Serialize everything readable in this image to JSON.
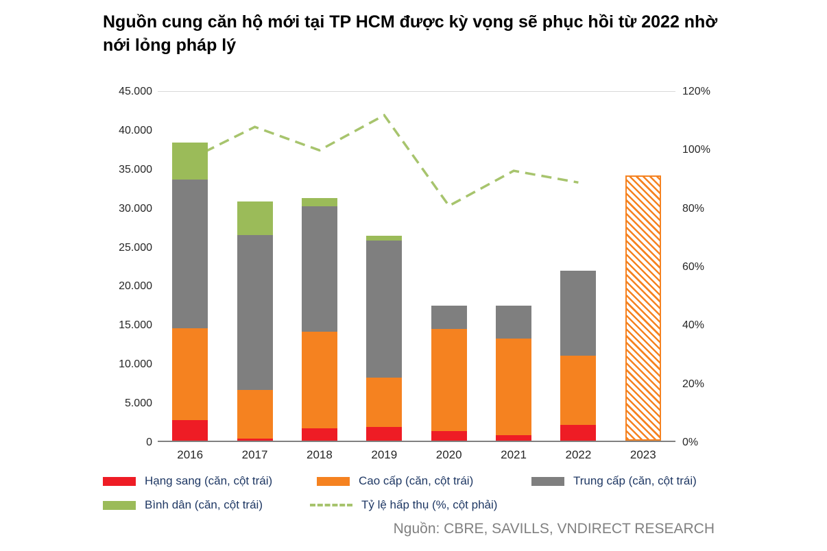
{
  "title": "Nguồn cung căn hộ mới tại TP HCM được kỳ vọng sẽ phục hồi từ 2022 nhờ nới lỏng pháp lý",
  "source": "Nguồn: CBRE, SAVILLS, VNDIRECT RESEARCH",
  "colors": {
    "red": "#ee1c25",
    "orange": "#f58220",
    "gray": "#7f7f7f",
    "green": "#9bbb59",
    "line_green": "#a7c46d",
    "axis_text": "#262626",
    "legend_text": "#1f3864",
    "source_text": "#808080"
  },
  "chart_data": {
    "type": "bar",
    "stacked": true,
    "title": "Nguồn cung căn hộ mới tại TP HCM được kỳ vọng sẽ phục hồi từ 2022 nhờ nới lỏng pháp lý",
    "categories": [
      "2016",
      "2017",
      "2018",
      "2019",
      "2020",
      "2021",
      "2022",
      "2023"
    ],
    "series": [
      {
        "name": "Hạng sang (căn, cột trái)",
        "color_key": "red",
        "values": [
          2600,
          300,
          1600,
          1800,
          1200,
          700,
          2000,
          0
        ]
      },
      {
        "name": "Cao cấp (căn, cột trái)",
        "color_key": "orange",
        "values": [
          11800,
          6200,
          12400,
          6300,
          13100,
          12400,
          8900,
          0
        ]
      },
      {
        "name": "Trung cấp (căn, cột trái)",
        "color_key": "gray",
        "values": [
          19100,
          19900,
          16100,
          17600,
          3000,
          4200,
          10900,
          0
        ]
      },
      {
        "name": "Bình dân (căn, cột trái)",
        "color_key": "green",
        "values": [
          4700,
          4300,
          1000,
          600,
          0,
          0,
          0,
          0
        ]
      }
    ],
    "forecast_bar": {
      "category": "2023",
      "total": 34000,
      "style": "hatched-orange"
    },
    "line_series": {
      "name": "Tỷ lệ hấp thụ (%, cột phải)",
      "axis": "right",
      "color_key": "line_green",
      "values_pct": [
        97,
        108,
        100,
        112,
        81,
        93,
        89
      ]
    },
    "left_axis": {
      "min": 0,
      "max": 45000,
      "tick_labels": [
        "0",
        "5.000",
        "10.000",
        "15.000",
        "20.000",
        "25.000",
        "30.000",
        "35.000",
        "40.000",
        "45.000"
      ]
    },
    "right_axis": {
      "min": 0,
      "max": 120,
      "tick_labels": [
        "0%",
        "20%",
        "40%",
        "60%",
        "80%",
        "100%",
        "120%"
      ]
    },
    "grid": "top-line-only",
    "legend_position": "bottom"
  }
}
